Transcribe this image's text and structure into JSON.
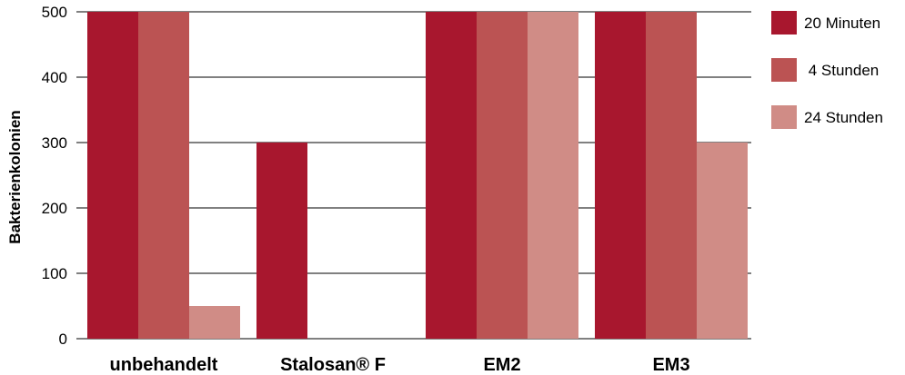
{
  "chart_data": {
    "type": "bar",
    "categories": [
      "unbehandelt",
      "Stalosan® F",
      "EM2",
      "EM3"
    ],
    "series": [
      {
        "name": "20 Minuten",
        "values": [
          500,
          300,
          500,
          500
        ],
        "color": "#a8172e"
      },
      {
        "name": " 4 Stunden",
        "values": [
          500,
          0,
          500,
          500
        ],
        "color": "#bb5353"
      },
      {
        "name": "24 Stunden",
        "values": [
          50,
          0,
          500,
          300
        ],
        "color": "#d08c86"
      }
    ],
    "title": "",
    "xlabel": "",
    "ylabel": "Bakterienkolonien",
    "ylim": [
      0,
      500
    ],
    "yticks": [
      0,
      100,
      200,
      300,
      400,
      500
    ],
    "grid": true,
    "legend": "right"
  }
}
